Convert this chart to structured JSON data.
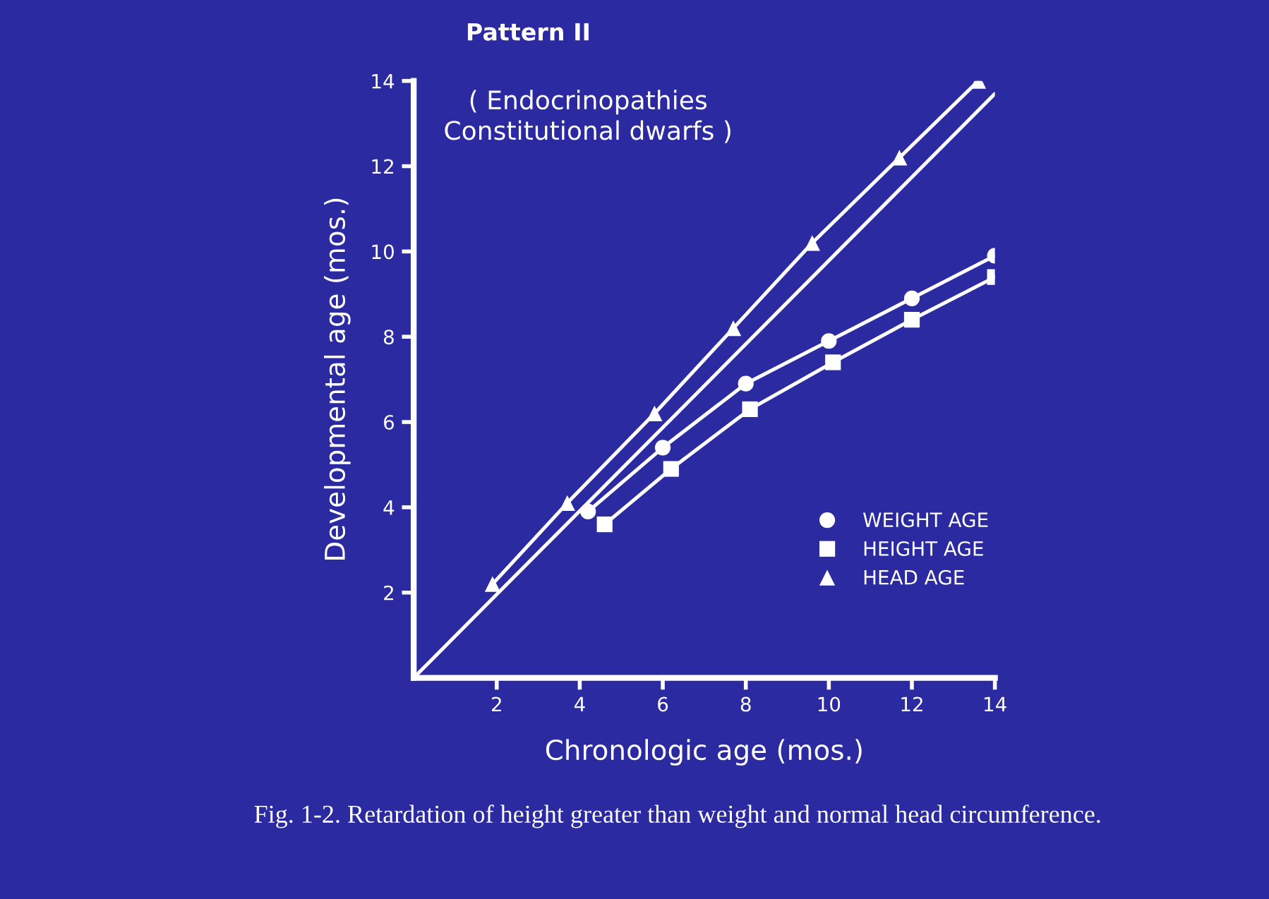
{
  "chart_data": {
    "type": "line",
    "title": "Pattern II",
    "subtitle": "( Endocrinopathies\nConstitutional dwarfs )",
    "xlabel": "Chronologic age (mos.)",
    "ylabel": "Developmental age (mos.)",
    "annotations": [
      "Fig. 1-2. Retardation of height greater than weight and normal head circumference."
    ],
    "series": [
      {
        "name": "WEIGHT AGE",
        "color": "#ffffff",
        "marker": "circle",
        "x": [
          4.2,
          6.0,
          8.0,
          10.0,
          12.0,
          14.0
        ],
        "values": [
          3.9,
          5.4,
          6.9,
          7.9,
          8.9,
          9.9
        ]
      },
      {
        "name": "HEIGHT AGE",
        "color": "#ffffff",
        "marker": "square",
        "x": [
          4.6,
          6.2,
          8.1,
          10.1,
          12.0,
          14.0
        ],
        "values": [
          3.6,
          4.9,
          6.3,
          7.4,
          8.4,
          9.4
        ]
      },
      {
        "name": "HEAD AGE",
        "color": "#ffffff",
        "marker": "triangle",
        "x": [
          1.9,
          3.7,
          5.8,
          7.7,
          9.6,
          11.7,
          13.6
        ],
        "values": [
          2.2,
          4.1,
          6.2,
          8.2,
          10.2,
          12.2,
          14.0
        ]
      },
      {
        "color": "#ffffff",
        "marker": "none",
        "x": [
          0,
          14
        ],
        "values": [
          0,
          13.7
        ]
      }
    ],
    "xlim": [
      0,
      14
    ],
    "ylim": [
      0,
      14
    ],
    "xticks": [
      2,
      4,
      6,
      8,
      10,
      12,
      14
    ],
    "yticks": [
      2,
      4,
      6,
      8,
      10,
      12,
      14
    ],
    "legend": "bottom right",
    "grid": false
  }
}
